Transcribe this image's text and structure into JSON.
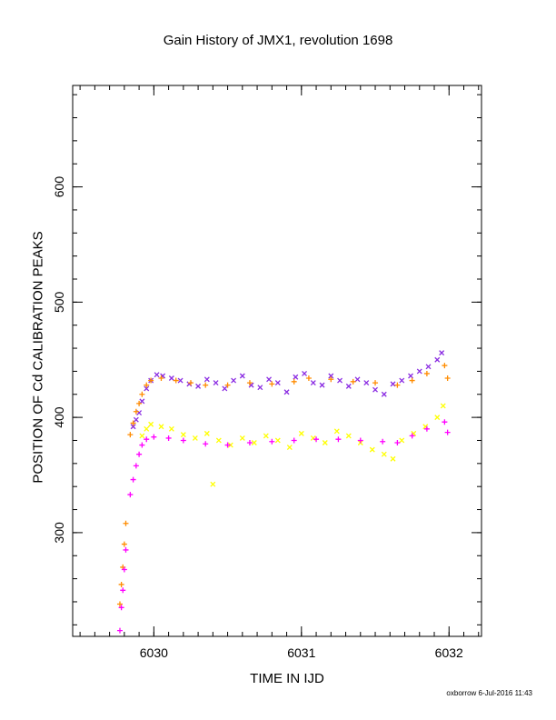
{
  "chart_data": {
    "type": "scatter",
    "title": "Gain History of JMX1, revolution 1698",
    "xlabel": "TIME IN IJD",
    "ylabel": "POSITION OF Cd CALIBRATION PEAKS",
    "xlim": [
      6029.45,
      6032.22
    ],
    "ylim": [
      210,
      688
    ],
    "x_ticks": [
      6030,
      6031,
      6032
    ],
    "y_ticks": [
      300,
      400,
      500,
      600
    ],
    "x_minor_step": 0.1,
    "y_minor_step": 20,
    "grid": false,
    "legend": "none",
    "series": [
      {
        "marker": "x",
        "color": "#8a2be2",
        "points": [
          [
            6029.86,
            392
          ],
          [
            6029.88,
            398
          ],
          [
            6029.9,
            404
          ],
          [
            6029.92,
            414
          ],
          [
            6029.95,
            425
          ],
          [
            6029.98,
            432
          ],
          [
            6030.02,
            437
          ],
          [
            6030.06,
            436
          ],
          [
            6030.12,
            434
          ],
          [
            6030.18,
            432
          ],
          [
            6030.24,
            429
          ],
          [
            6030.3,
            427
          ],
          [
            6030.36,
            433
          ],
          [
            6030.42,
            430
          ],
          [
            6030.48,
            425
          ],
          [
            6030.54,
            432
          ],
          [
            6030.6,
            436
          ],
          [
            6030.66,
            428
          ],
          [
            6030.72,
            426
          ],
          [
            6030.78,
            433
          ],
          [
            6030.84,
            430
          ],
          [
            6030.9,
            422
          ],
          [
            6030.96,
            435
          ],
          [
            6031.02,
            438
          ],
          [
            6031.08,
            430
          ],
          [
            6031.14,
            428
          ],
          [
            6031.2,
            436
          ],
          [
            6031.26,
            432
          ],
          [
            6031.32,
            427
          ],
          [
            6031.38,
            433
          ],
          [
            6031.44,
            430
          ],
          [
            6031.5,
            424
          ],
          [
            6031.56,
            420
          ],
          [
            6031.62,
            429
          ],
          [
            6031.68,
            432
          ],
          [
            6031.74,
            436
          ],
          [
            6031.8,
            440
          ],
          [
            6031.86,
            444
          ],
          [
            6031.92,
            450
          ],
          [
            6031.95,
            456
          ]
        ]
      },
      {
        "marker": "+",
        "color": "#ff8c00",
        "points": [
          [
            6029.77,
            238
          ],
          [
            6029.78,
            255
          ],
          [
            6029.79,
            270
          ],
          [
            6029.8,
            290
          ],
          [
            6029.81,
            308
          ],
          [
            6029.84,
            385
          ],
          [
            6029.86,
            395
          ],
          [
            6029.88,
            405
          ],
          [
            6029.9,
            412
          ],
          [
            6029.92,
            420
          ],
          [
            6029.95,
            428
          ],
          [
            6029.98,
            432
          ],
          [
            6030.05,
            434
          ],
          [
            6030.15,
            432
          ],
          [
            6030.25,
            430
          ],
          [
            6030.35,
            428
          ],
          [
            6030.5,
            428
          ],
          [
            6030.65,
            430
          ],
          [
            6030.8,
            429
          ],
          [
            6030.95,
            431
          ],
          [
            6031.05,
            434
          ],
          [
            6031.2,
            433
          ],
          [
            6031.35,
            431
          ],
          [
            6031.5,
            430
          ],
          [
            6031.65,
            428
          ],
          [
            6031.75,
            432
          ],
          [
            6031.85,
            438
          ],
          [
            6031.97,
            445
          ],
          [
            6031.99,
            434
          ]
        ]
      },
      {
        "marker": "x",
        "color": "#ffff00",
        "points": [
          [
            6029.92,
            384
          ],
          [
            6029.95,
            390
          ],
          [
            6029.98,
            394
          ],
          [
            6030.05,
            392
          ],
          [
            6030.12,
            390
          ],
          [
            6030.2,
            385
          ],
          [
            6030.28,
            382
          ],
          [
            6030.36,
            386
          ],
          [
            6030.4,
            342
          ],
          [
            6030.44,
            380
          ],
          [
            6030.52,
            376
          ],
          [
            6030.6,
            382
          ],
          [
            6030.68,
            378
          ],
          [
            6030.76,
            384
          ],
          [
            6030.84,
            380
          ],
          [
            6030.92,
            374
          ],
          [
            6031.0,
            386
          ],
          [
            6031.08,
            382
          ],
          [
            6031.16,
            378
          ],
          [
            6031.24,
            388
          ],
          [
            6031.32,
            384
          ],
          [
            6031.4,
            378
          ],
          [
            6031.48,
            372
          ],
          [
            6031.56,
            368
          ],
          [
            6031.62,
            364
          ],
          [
            6031.68,
            380
          ],
          [
            6031.76,
            386
          ],
          [
            6031.84,
            392
          ],
          [
            6031.92,
            400
          ],
          [
            6031.96,
            410
          ]
        ]
      },
      {
        "marker": "+",
        "color": "#ff00ff",
        "points": [
          [
            6029.77,
            215
          ],
          [
            6029.78,
            235
          ],
          [
            6029.79,
            250
          ],
          [
            6029.8,
            268
          ],
          [
            6029.81,
            285
          ],
          [
            6029.84,
            333
          ],
          [
            6029.86,
            346
          ],
          [
            6029.88,
            358
          ],
          [
            6029.9,
            368
          ],
          [
            6029.92,
            376
          ],
          [
            6029.95,
            381
          ],
          [
            6030.0,
            383
          ],
          [
            6030.1,
            382
          ],
          [
            6030.2,
            380
          ],
          [
            6030.35,
            377
          ],
          [
            6030.5,
            376
          ],
          [
            6030.65,
            378
          ],
          [
            6030.8,
            379
          ],
          [
            6030.95,
            380
          ],
          [
            6031.1,
            381
          ],
          [
            6031.25,
            381
          ],
          [
            6031.4,
            380
          ],
          [
            6031.55,
            379
          ],
          [
            6031.65,
            378
          ],
          [
            6031.75,
            384
          ],
          [
            6031.85,
            390
          ],
          [
            6031.97,
            396
          ],
          [
            6031.99,
            387
          ]
        ]
      }
    ]
  },
  "footer": {
    "credit": "oxborrow  6-Jul-2016 11:43"
  }
}
